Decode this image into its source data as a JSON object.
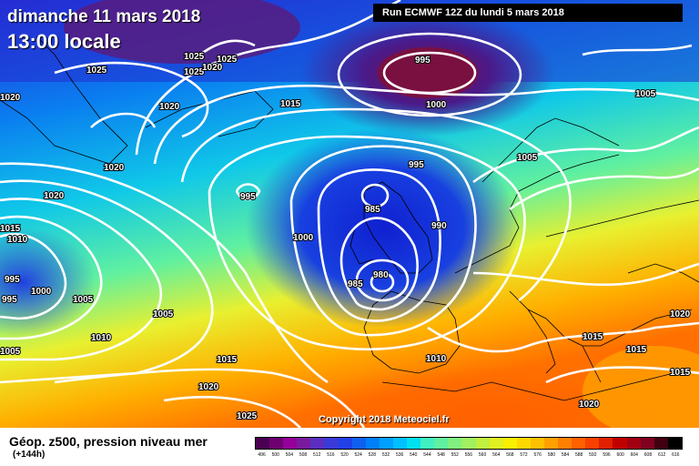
{
  "header": {
    "date": "dimanche 11 mars 2018",
    "time": "13:00 locale",
    "run": "Run ECMWF 12Z du lundi 5 mars 2018"
  },
  "footer": {
    "field": "Géop. z500, pression niveau mer",
    "lead": "(+144h)",
    "copyright": "Copyright 2018 Meteociel.fr"
  },
  "scale": {
    "values": [
      "496",
      "500",
      "504",
      "508",
      "512",
      "516",
      "520",
      "524",
      "528",
      "532",
      "536",
      "540",
      "544",
      "548",
      "552",
      "556",
      "560",
      "564",
      "568",
      "572",
      "576",
      "580",
      "584",
      "588",
      "592",
      "596",
      "600",
      "604",
      "608",
      "612",
      "616"
    ],
    "colors": [
      "#4a0050",
      "#6e0070",
      "#96009a",
      "#7a1a9e",
      "#5a2fc0",
      "#3a3ad8",
      "#2040e8",
      "#1060f0",
      "#0080f8",
      "#00a0ff",
      "#00c0ff",
      "#00e0f0",
      "#40f0c0",
      "#60f0a0",
      "#80f080",
      "#a0f060",
      "#c0f040",
      "#e0f020",
      "#f8f000",
      "#ffd800",
      "#ffc000",
      "#ffa000",
      "#ff8000",
      "#ff6000",
      "#f84000",
      "#e02000",
      "#c00000",
      "#a00010",
      "#800020",
      "#400010",
      "#000000"
    ]
  },
  "pressure_labels": [
    {
      "text": "1025",
      "pos": "n-greenland-1"
    },
    {
      "text": "1025",
      "pos": "n-greenland-2"
    },
    {
      "text": "1025",
      "pos": "n-greenland-3"
    },
    {
      "text": "1020",
      "pos": "n-greenland-4"
    },
    {
      "text": "1025",
      "pos": "n-greenland-5"
    },
    {
      "text": "1025",
      "pos": "greenland-w"
    },
    {
      "text": "1020",
      "pos": "w-edge-top"
    },
    {
      "text": "1020",
      "pos": "greenland-s"
    },
    {
      "text": "1015",
      "pos": "iceland-s"
    },
    {
      "text": "995",
      "pos": "norway-low"
    },
    {
      "text": "1000",
      "pos": "norway-low-ring"
    },
    {
      "text": "1005",
      "pos": "scandinavia"
    },
    {
      "text": "1005",
      "pos": "russia-ne"
    },
    {
      "text": "995",
      "pos": "mid-atlantic-low"
    },
    {
      "text": "1020",
      "pos": "greenland-coast"
    },
    {
      "text": "1020",
      "pos": "labrador"
    },
    {
      "text": "1015",
      "pos": "w-edge-mid"
    },
    {
      "text": "1010",
      "pos": "w-edge-mid2"
    },
    {
      "text": "995",
      "pos": "w-low-1"
    },
    {
      "text": "995",
      "pos": "w-low-2"
    },
    {
      "text": "1000",
      "pos": "w-low-3"
    },
    {
      "text": "1005",
      "pos": "w-atlantic"
    },
    {
      "text": "995",
      "pos": "north-sea"
    },
    {
      "text": "985",
      "pos": "scotland"
    },
    {
      "text": "990",
      "pos": "ireland-e"
    },
    {
      "text": "1000",
      "pos": "atlantic-center"
    },
    {
      "text": "980",
      "pos": "biscay-low"
    },
    {
      "text": "985",
      "pos": "biscay-low-ring"
    },
    {
      "text": "1005",
      "pos": "atlantic-s"
    },
    {
      "text": "1010",
      "pos": "azores"
    },
    {
      "text": "1005",
      "pos": "sw-edge"
    },
    {
      "text": "1015",
      "pos": "canaries"
    },
    {
      "text": "1020",
      "pos": "sahara-w"
    },
    {
      "text": "1025",
      "pos": "sahara-sw"
    },
    {
      "text": "1010",
      "pos": "iberia-s"
    },
    {
      "text": "1015",
      "pos": "balkans"
    },
    {
      "text": "1015",
      "pos": "turkey"
    },
    {
      "text": "1020",
      "pos": "e-edge"
    },
    {
      "text": "1015",
      "pos": "black-sea"
    },
    {
      "text": "1020",
      "pos": "libya"
    }
  ]
}
